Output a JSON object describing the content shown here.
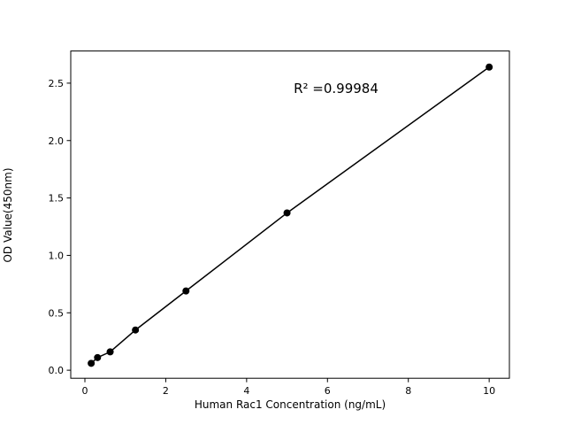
{
  "chart_data": {
    "type": "scatter",
    "title": "",
    "xlabel": "Human Rac1 Concentration (ng/mL)",
    "ylabel": "OD Value(450nm)",
    "annotation": "R² =0.99984",
    "x": [
      0.156,
      0.3125,
      0.625,
      1.25,
      2.5,
      5,
      10
    ],
    "y": [
      0.06,
      0.11,
      0.16,
      0.35,
      0.69,
      1.37,
      2.64
    ],
    "xticks": [
      0,
      2,
      4,
      6,
      8,
      10
    ],
    "yticks": [
      0.0,
      0.5,
      1.0,
      1.5,
      2.0,
      2.5
    ],
    "xlim": [
      -0.35,
      10.5
    ],
    "ylim": [
      -0.07,
      2.78
    ],
    "grid": false,
    "legend": "none",
    "line_through_points": true,
    "marker_color": "#000000",
    "line_color": "#000000",
    "axis_color": "#000000",
    "background_color": "#ffffff"
  }
}
